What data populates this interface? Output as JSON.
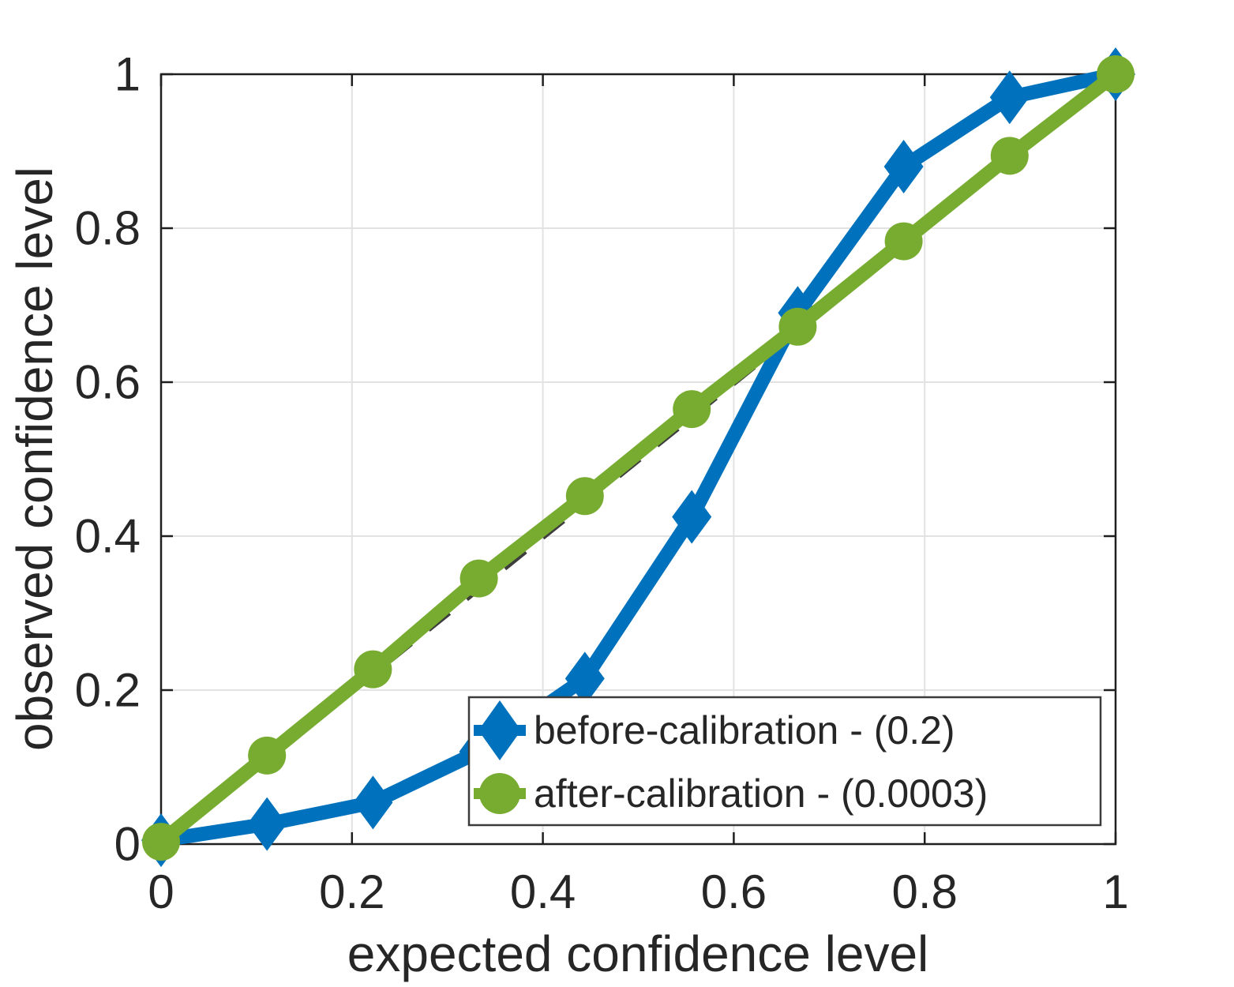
{
  "chart_data": {
    "type": "line",
    "title": "",
    "xlabel": "expected confidence level",
    "ylabel": "observed confidence level",
    "xlim": [
      0,
      1
    ],
    "ylim": [
      0,
      1
    ],
    "xticks": [
      0,
      0.2,
      0.4,
      0.6,
      0.8,
      1
    ],
    "yticks": [
      0,
      0.2,
      0.4,
      0.6,
      0.8,
      1
    ],
    "grid": true,
    "legend_position": "southeast-inside",
    "x": [
      0,
      0.111,
      0.222,
      0.333,
      0.444,
      0.556,
      0.667,
      0.778,
      0.889,
      1
    ],
    "series": [
      {
        "name": "before-calibration - (0.2)",
        "marker": "diamond-marker",
        "color": "#0072BD",
        "values": [
          0.005,
          0.026,
          0.054,
          0.12,
          0.215,
          0.425,
          0.69,
          0.88,
          0.97,
          1.0
        ]
      },
      {
        "name": "after-calibration - (0.0003)",
        "marker": "circle-marker",
        "color": "#77AC30",
        "values": [
          0.003,
          0.115,
          0.227,
          0.345,
          0.452,
          0.565,
          0.672,
          0.783,
          0.894,
          1.0
        ]
      }
    ],
    "reference_line": {
      "style": "dashed",
      "color": "#3D3D3D",
      "from": [
        0,
        0
      ],
      "to": [
        1,
        1
      ]
    }
  },
  "style": {
    "background": "#FFFFFF",
    "grid_color": "#E2E2E2",
    "axis_color": "#1F1F1F",
    "text_color": "#262626",
    "legend_border_color": "#3B3B3B",
    "legend_background": "#FFFFFF"
  }
}
